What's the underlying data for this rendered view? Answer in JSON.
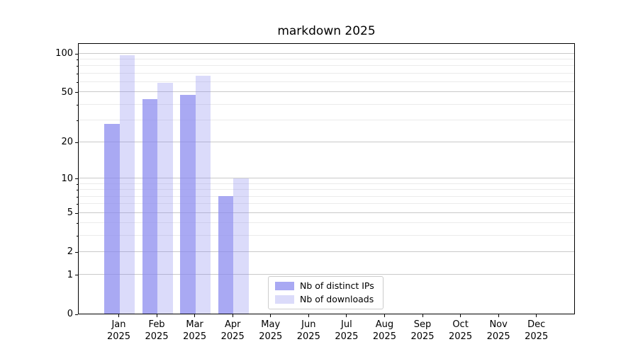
{
  "chart_data": {
    "type": "bar",
    "title": "markdown 2025",
    "categories": [
      "Jan 2025",
      "Feb 2025",
      "Mar 2025",
      "Apr 2025",
      "May 2025",
      "Jun 2025",
      "Jul 2025",
      "Aug 2025",
      "Sep 2025",
      "Oct 2025",
      "Nov 2025",
      "Dec 2025"
    ],
    "series": [
      {
        "name": "Nb of distinct IPs",
        "color": "rgba(136,136,238,0.72)",
        "values": [
          28,
          44,
          47,
          7,
          0,
          0,
          0,
          0,
          0,
          0,
          0,
          0
        ]
      },
      {
        "name": "Nb of downloads",
        "color": "rgba(136,136,238,0.30)",
        "values": [
          97,
          59,
          67,
          10,
          0,
          0,
          0,
          0,
          0,
          0,
          0,
          0
        ]
      }
    ],
    "y_scale": "symlog (log1p)",
    "y_ticks": [
      0,
      1,
      2,
      5,
      10,
      20,
      50,
      100
    ],
    "y_minor_ticks": [
      3,
      4,
      6,
      7,
      8,
      9,
      30,
      40,
      60,
      70,
      80,
      90
    ],
    "ylim": [
      0,
      121.2
    ],
    "grid": "horizontal",
    "legend_position": "inside lower-center-left"
  },
  "colors": {
    "grid_major": "#c9c9c9",
    "grid_minor": "#ebebeb",
    "spine": "#000000",
    "background": "#ffffff"
  }
}
